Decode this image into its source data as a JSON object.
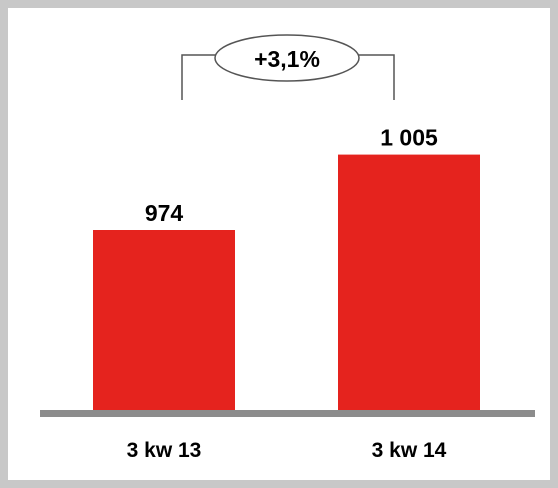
{
  "chart_data": {
    "type": "bar",
    "categories": [
      "3 kw 13",
      "3 kw 14"
    ],
    "values": [
      974,
      1005
    ],
    "value_labels": [
      "974",
      "1 005"
    ],
    "change_label": "+3,1%",
    "bar_color": "#e5231e",
    "baseline_color": "#8c8c8c",
    "frame_color": "#c8c8c8",
    "title": "",
    "xlabel": "",
    "ylabel": ""
  }
}
